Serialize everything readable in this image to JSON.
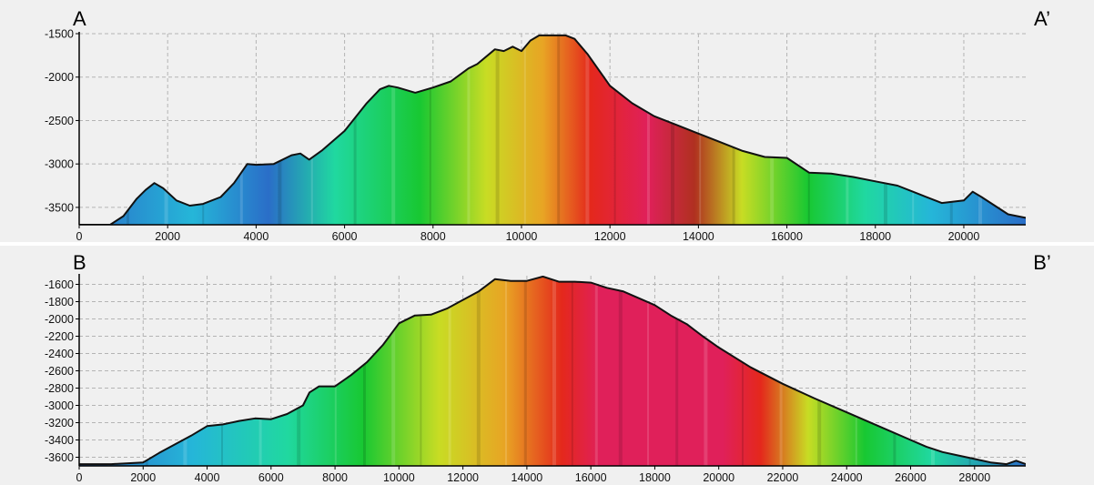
{
  "chart_data": [
    {
      "type": "area",
      "corner_left": "A",
      "corner_right": "A’",
      "xlim": [
        0,
        21400
      ],
      "ylim": [
        -3700,
        -1500
      ],
      "x_ticks": [
        0,
        2000,
        4000,
        6000,
        8000,
        10000,
        12000,
        14000,
        16000,
        18000,
        20000
      ],
      "y_ticks": [
        -1500,
        -2000,
        -2500,
        -3000,
        -3500
      ],
      "grid": true,
      "profile": {
        "x": [
          0,
          700,
          1000,
          1300,
          1500,
          1700,
          1900,
          2200,
          2500,
          2800,
          3200,
          3500,
          3800,
          4000,
          4400,
          4800,
          5000,
          5200,
          5500,
          6000,
          6500,
          6800,
          7000,
          7200,
          7600,
          8000,
          8400,
          8800,
          9000,
          9400,
          9600,
          9800,
          10000,
          10200,
          10400,
          11000,
          11200,
          11500,
          12000,
          12500,
          13000,
          13500,
          14000,
          14500,
          15000,
          15500,
          16000,
          16500,
          17000,
          17500,
          18000,
          18500,
          19000,
          19500,
          20000,
          20200,
          20400,
          20700,
          21000,
          21400
        ],
        "y": [
          -3700,
          -3700,
          -3600,
          -3400,
          -3300,
          -3220,
          -3280,
          -3420,
          -3480,
          -3460,
          -3380,
          -3220,
          -3000,
          -3010,
          -3000,
          -2900,
          -2880,
          -2950,
          -2840,
          -2620,
          -2300,
          -2140,
          -2100,
          -2120,
          -2180,
          -2120,
          -2050,
          -1900,
          -1850,
          -1680,
          -1700,
          -1650,
          -1700,
          -1580,
          -1520,
          -1520,
          -1560,
          -1740,
          -2100,
          -2300,
          -2450,
          -2550,
          -2650,
          -2750,
          -2850,
          -2920,
          -2930,
          -3100,
          -3110,
          -3150,
          -3200,
          -3250,
          -3350,
          -3450,
          -3420,
          -3320,
          -3380,
          -3480,
          -3580,
          -3620
        ]
      },
      "colormap": [
        "#2a6ec8",
        "#25b6d8",
        "#20d8a0",
        "#18c832",
        "#c8dc24",
        "#e8a424",
        "#e4281c",
        "#e0205a",
        "#b03020"
      ]
    },
    {
      "type": "area",
      "corner_left": "B",
      "corner_right": "B’",
      "xlim": [
        0,
        29600
      ],
      "ylim": [
        -3700,
        -1500
      ],
      "x_ticks": [
        0,
        2000,
        4000,
        6000,
        8000,
        10000,
        12000,
        14000,
        16000,
        18000,
        20000,
        22000,
        24000,
        26000,
        28000
      ],
      "y_ticks": [
        -1600,
        -1800,
        -2000,
        -2200,
        -2400,
        -2600,
        -2800,
        -3000,
        -3200,
        -3400,
        -3600
      ],
      "grid": true,
      "profile": {
        "x": [
          0,
          1000,
          2000,
          2500,
          3000,
          3500,
          4000,
          4500,
          5000,
          5500,
          6000,
          6500,
          7000,
          7200,
          7500,
          8000,
          8500,
          9000,
          9500,
          10000,
          10500,
          11000,
          11500,
          12000,
          12500,
          13000,
          13500,
          14000,
          14500,
          15000,
          15500,
          16000,
          16500,
          17000,
          17500,
          18000,
          18500,
          19000,
          19500,
          20000,
          21000,
          22000,
          23000,
          24000,
          25000,
          26000,
          26500,
          27000,
          27500,
          28000,
          28500,
          29000,
          29300,
          29600
        ],
        "y": [
          -3680,
          -3680,
          -3660,
          -3550,
          -3450,
          -3350,
          -3240,
          -3220,
          -3180,
          -3150,
          -3160,
          -3100,
          -3000,
          -2850,
          -2780,
          -2780,
          -2650,
          -2500,
          -2300,
          -2050,
          -1960,
          -1950,
          -1880,
          -1780,
          -1680,
          -1540,
          -1560,
          -1560,
          -1510,
          -1570,
          -1570,
          -1580,
          -1640,
          -1680,
          -1760,
          -1840,
          -1960,
          -2060,
          -2200,
          -2330,
          -2560,
          -2750,
          -2920,
          -3080,
          -3240,
          -3400,
          -3480,
          -3540,
          -3580,
          -3620,
          -3660,
          -3680,
          -3640,
          -3680
        ]
      },
      "colormap": [
        "#2a6ec8",
        "#25b6d8",
        "#20d8a0",
        "#18c832",
        "#c8dc24",
        "#e8a424",
        "#e4281c",
        "#e0205a",
        "#b03020"
      ]
    }
  ]
}
